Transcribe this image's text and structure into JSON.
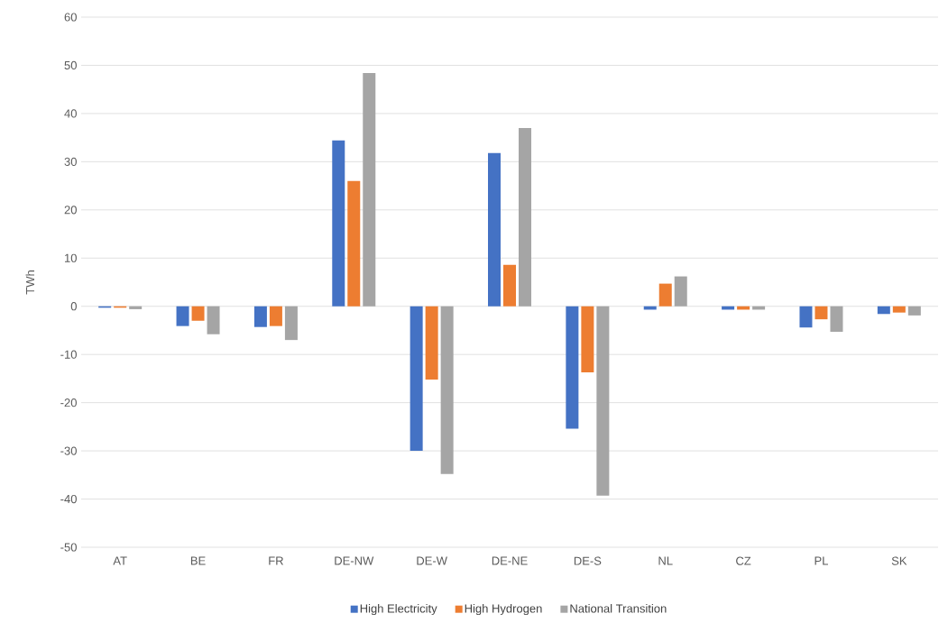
{
  "chart_data": {
    "type": "bar",
    "ylabel": "TWh",
    "categories": [
      "AT",
      "BE",
      "FR",
      "DE-NW",
      "DE-W",
      "DE-NE",
      "DE-S",
      "NL",
      "CZ",
      "PL",
      "SK"
    ],
    "series": [
      {
        "name": "High Electricity",
        "color": "#4472c4",
        "values": [
          -0.3,
          -4.1,
          -4.3,
          34.4,
          -30,
          31.8,
          -25.4,
          -0.7,
          -0.7,
          -4.4,
          -1.6
        ]
      },
      {
        "name": "High Hydrogen",
        "color": "#ed7d31",
        "values": [
          -0.3,
          -3,
          -4.1,
          26,
          -15.2,
          8.6,
          -13.7,
          4.7,
          -0.7,
          -2.7,
          -1.3
        ]
      },
      {
        "name": "National Transition",
        "color": "#a5a5a5",
        "values": [
          -0.6,
          -5.8,
          -7,
          48.4,
          -34.8,
          37,
          -39.3,
          6.2,
          -0.7,
          -5.3,
          -1.9
        ]
      }
    ],
    "ylim": [
      -50,
      60
    ],
    "yticks": [
      -50,
      -40,
      -30,
      -20,
      -10,
      0,
      10,
      20,
      30,
      40,
      50,
      60
    ],
    "grid": "y",
    "legend": "bottom"
  }
}
